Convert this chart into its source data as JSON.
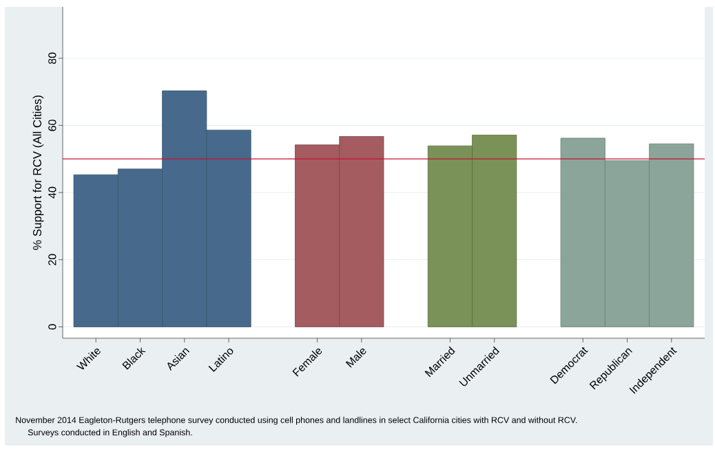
{
  "chart_data": {
    "type": "bar",
    "ylabel": "% Support for RCV (All Cities)",
    "categories": [
      "White",
      "Black",
      "Asian",
      "Latino",
      null,
      "Female",
      "Male",
      null,
      "Married",
      "Unmarried",
      null,
      "Democrat",
      "Republican",
      "Independent"
    ],
    "values": [
      45.3,
      47.0,
      70.3,
      58.6,
      null,
      54.2,
      56.7,
      null,
      53.9,
      57.1,
      null,
      56.2,
      49.5,
      54.5
    ],
    "colors": [
      "#476a8c",
      "#476a8c",
      "#476a8c",
      "#476a8c",
      null,
      "#a45c60",
      "#a45c60",
      null,
      "#7a9157",
      "#7a9157",
      null,
      "#8ba59a",
      "#8ba59a",
      "#8ba59a"
    ],
    "ylim": [
      -3.4,
      95.3
    ],
    "yticks": [
      0,
      20,
      40,
      60,
      80
    ],
    "grid": "y",
    "ref_lines": [
      {
        "axis": "y",
        "value": 50,
        "color": "#c8102e"
      }
    ],
    "annotations": [
      "November 2014 Eagleton-Rutgers telephone survey conducted using cell phones and landlines in select California cities with RCV and without RCV.",
      "Surveys conducted in English and Spanish."
    ]
  }
}
